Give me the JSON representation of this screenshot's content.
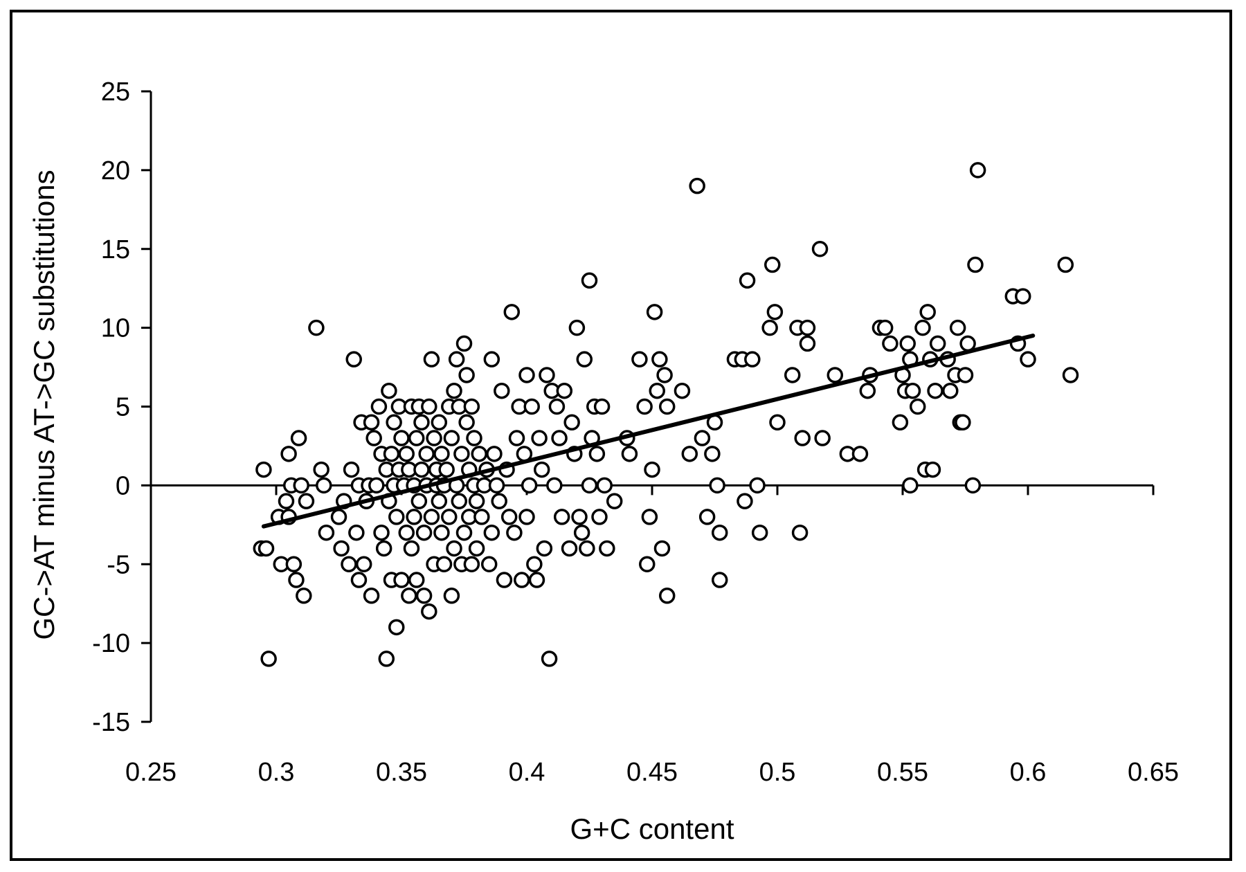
{
  "chart_data": {
    "type": "scatter",
    "title": "",
    "xlabel": "G+C content",
    "ylabel": "GC->AT minus AT->GC substitutions",
    "xlim": [
      0.25,
      0.65
    ],
    "ylim": [
      -15,
      25
    ],
    "x_ticks": [
      0.25,
      0.3,
      0.35,
      0.4,
      0.45,
      0.5,
      0.55,
      0.6,
      0.65
    ],
    "x_tick_labels": [
      "0.25",
      "0.3",
      "0.35",
      "0.4",
      "0.45",
      "0.5",
      "0.55",
      "0.6",
      "0.65"
    ],
    "y_ticks": [
      -15,
      -10,
      -5,
      0,
      5,
      10,
      15,
      20,
      25
    ],
    "y_tick_labels": [
      "-15",
      "-10",
      "-5",
      "0",
      "5",
      "10",
      "15",
      "20",
      "25"
    ],
    "grid": false,
    "legend": "none",
    "marker": "open-circle",
    "trendline": {
      "x": [
        0.295,
        0.602
      ],
      "y": [
        -2.6,
        9.5
      ]
    },
    "points": [
      [
        0.295,
        1
      ],
      [
        0.294,
        -4
      ],
      [
        0.296,
        -4
      ],
      [
        0.297,
        -11
      ],
      [
        0.301,
        -2
      ],
      [
        0.302,
        -5
      ],
      [
        0.304,
        -1
      ],
      [
        0.305,
        2
      ],
      [
        0.305,
        -2
      ],
      [
        0.306,
        0
      ],
      [
        0.307,
        -5
      ],
      [
        0.308,
        -6
      ],
      [
        0.309,
        3
      ],
      [
        0.31,
        0
      ],
      [
        0.311,
        -7
      ],
      [
        0.312,
        -1
      ],
      [
        0.316,
        10
      ],
      [
        0.318,
        1
      ],
      [
        0.319,
        0
      ],
      [
        0.32,
        -3
      ],
      [
        0.325,
        -2
      ],
      [
        0.326,
        -4
      ],
      [
        0.327,
        -1
      ],
      [
        0.329,
        -5
      ],
      [
        0.33,
        1
      ],
      [
        0.331,
        8
      ],
      [
        0.332,
        -3
      ],
      [
        0.333,
        0
      ],
      [
        0.333,
        -6
      ],
      [
        0.334,
        4
      ],
      [
        0.335,
        -5
      ],
      [
        0.336,
        -1
      ],
      [
        0.337,
        0
      ],
      [
        0.338,
        4
      ],
      [
        0.338,
        -7
      ],
      [
        0.339,
        3
      ],
      [
        0.34,
        0
      ],
      [
        0.341,
        5
      ],
      [
        0.342,
        2
      ],
      [
        0.342,
        -3
      ],
      [
        0.343,
        -4
      ],
      [
        0.344,
        1
      ],
      [
        0.344,
        -11
      ],
      [
        0.345,
        6
      ],
      [
        0.345,
        -1
      ],
      [
        0.346,
        2
      ],
      [
        0.346,
        -6
      ],
      [
        0.347,
        0
      ],
      [
        0.347,
        4
      ],
      [
        0.348,
        -2
      ],
      [
        0.348,
        -9
      ],
      [
        0.349,
        5
      ],
      [
        0.349,
        1
      ],
      [
        0.35,
        -6
      ],
      [
        0.35,
        3
      ],
      [
        0.351,
        0
      ],
      [
        0.352,
        -3
      ],
      [
        0.352,
        2
      ],
      [
        0.353,
        -7
      ],
      [
        0.353,
        1
      ],
      [
        0.354,
        -4
      ],
      [
        0.354,
        5
      ],
      [
        0.355,
        0
      ],
      [
        0.355,
        -2
      ],
      [
        0.356,
        3
      ],
      [
        0.356,
        -6
      ],
      [
        0.357,
        5
      ],
      [
        0.357,
        -1
      ],
      [
        0.358,
        1
      ],
      [
        0.358,
        4
      ],
      [
        0.359,
        -3
      ],
      [
        0.359,
        -7
      ],
      [
        0.36,
        0
      ],
      [
        0.36,
        2
      ],
      [
        0.361,
        -8
      ],
      [
        0.361,
        5
      ],
      [
        0.362,
        8
      ],
      [
        0.362,
        -2
      ],
      [
        0.363,
        3
      ],
      [
        0.363,
        -5
      ],
      [
        0.364,
        1
      ],
      [
        0.364,
        0
      ],
      [
        0.365,
        4
      ],
      [
        0.365,
        -1
      ],
      [
        0.366,
        -3
      ],
      [
        0.366,
        2
      ],
      [
        0.367,
        -5
      ],
      [
        0.367,
        0
      ],
      [
        0.368,
        1
      ],
      [
        0.369,
        5
      ],
      [
        0.369,
        -2
      ],
      [
        0.37,
        -7
      ],
      [
        0.37,
        3
      ],
      [
        0.371,
        -4
      ],
      [
        0.371,
        6
      ],
      [
        0.372,
        8
      ],
      [
        0.372,
        0
      ],
      [
        0.373,
        5
      ],
      [
        0.373,
        -1
      ],
      [
        0.374,
        2
      ],
      [
        0.374,
        -5
      ],
      [
        0.375,
        9
      ],
      [
        0.375,
        -3
      ],
      [
        0.376,
        7
      ],
      [
        0.376,
        4
      ],
      [
        0.377,
        1
      ],
      [
        0.377,
        -2
      ],
      [
        0.378,
        5
      ],
      [
        0.378,
        -5
      ],
      [
        0.379,
        0
      ],
      [
        0.379,
        3
      ],
      [
        0.38,
        -1
      ],
      [
        0.38,
        -4
      ],
      [
        0.381,
        2
      ],
      [
        0.382,
        -2
      ],
      [
        0.383,
        0
      ],
      [
        0.384,
        1
      ],
      [
        0.385,
        -5
      ],
      [
        0.386,
        8
      ],
      [
        0.386,
        -3
      ],
      [
        0.387,
        2
      ],
      [
        0.388,
        0
      ],
      [
        0.389,
        -1
      ],
      [
        0.39,
        6
      ],
      [
        0.391,
        -6
      ],
      [
        0.392,
        1
      ],
      [
        0.393,
        -2
      ],
      [
        0.394,
        11
      ],
      [
        0.395,
        -3
      ],
      [
        0.396,
        3
      ],
      [
        0.397,
        5
      ],
      [
        0.398,
        -6
      ],
      [
        0.399,
        2
      ],
      [
        0.4,
        7
      ],
      [
        0.4,
        -2
      ],
      [
        0.401,
        0
      ],
      [
        0.402,
        5
      ],
      [
        0.403,
        -5
      ],
      [
        0.404,
        -6
      ],
      [
        0.405,
        3
      ],
      [
        0.406,
        1
      ],
      [
        0.407,
        -4
      ],
      [
        0.408,
        7
      ],
      [
        0.409,
        -11
      ],
      [
        0.41,
        6
      ],
      [
        0.411,
        0
      ],
      [
        0.412,
        5
      ],
      [
        0.413,
        3
      ],
      [
        0.414,
        -2
      ],
      [
        0.415,
        6
      ],
      [
        0.417,
        -4
      ],
      [
        0.418,
        4
      ],
      [
        0.419,
        2
      ],
      [
        0.42,
        10
      ],
      [
        0.421,
        -2
      ],
      [
        0.422,
        -3
      ],
      [
        0.423,
        8
      ],
      [
        0.424,
        -4
      ],
      [
        0.425,
        13
      ],
      [
        0.425,
        0
      ],
      [
        0.426,
        3
      ],
      [
        0.427,
        5
      ],
      [
        0.428,
        2
      ],
      [
        0.429,
        -2
      ],
      [
        0.43,
        5
      ],
      [
        0.431,
        0
      ],
      [
        0.432,
        -4
      ],
      [
        0.435,
        -1
      ],
      [
        0.44,
        3
      ],
      [
        0.441,
        2
      ],
      [
        0.445,
        8
      ],
      [
        0.447,
        5
      ],
      [
        0.448,
        -5
      ],
      [
        0.449,
        -2
      ],
      [
        0.45,
        1
      ],
      [
        0.451,
        11
      ],
      [
        0.452,
        6
      ],
      [
        0.453,
        8
      ],
      [
        0.454,
        -4
      ],
      [
        0.455,
        7
      ],
      [
        0.456,
        -7
      ],
      [
        0.456,
        5
      ],
      [
        0.462,
        6
      ],
      [
        0.465,
        2
      ],
      [
        0.468,
        19
      ],
      [
        0.47,
        3
      ],
      [
        0.472,
        -2
      ],
      [
        0.474,
        2
      ],
      [
        0.475,
        4
      ],
      [
        0.476,
        0
      ],
      [
        0.477,
        -3
      ],
      [
        0.477,
        -6
      ],
      [
        0.483,
        8
      ],
      [
        0.486,
        8
      ],
      [
        0.487,
        -1
      ],
      [
        0.488,
        13
      ],
      [
        0.49,
        8
      ],
      [
        0.492,
        0
      ],
      [
        0.493,
        -3
      ],
      [
        0.497,
        10
      ],
      [
        0.498,
        14
      ],
      [
        0.499,
        11
      ],
      [
        0.5,
        4
      ],
      [
        0.506,
        7
      ],
      [
        0.508,
        10
      ],
      [
        0.509,
        -3
      ],
      [
        0.51,
        3
      ],
      [
        0.512,
        10
      ],
      [
        0.512,
        9
      ],
      [
        0.517,
        15
      ],
      [
        0.518,
        3
      ],
      [
        0.523,
        7
      ],
      [
        0.528,
        2
      ],
      [
        0.533,
        2
      ],
      [
        0.536,
        6
      ],
      [
        0.537,
        7
      ],
      [
        0.541,
        10
      ],
      [
        0.543,
        10
      ],
      [
        0.545,
        9
      ],
      [
        0.549,
        4
      ],
      [
        0.55,
        7
      ],
      [
        0.551,
        6
      ],
      [
        0.552,
        9
      ],
      [
        0.553,
        8
      ],
      [
        0.553,
        0
      ],
      [
        0.554,
        6
      ],
      [
        0.556,
        5
      ],
      [
        0.558,
        10
      ],
      [
        0.559,
        1
      ],
      [
        0.56,
        11
      ],
      [
        0.561,
        8
      ],
      [
        0.562,
        1
      ],
      [
        0.563,
        6
      ],
      [
        0.564,
        9
      ],
      [
        0.568,
        8
      ],
      [
        0.569,
        6
      ],
      [
        0.571,
        7
      ],
      [
        0.572,
        10
      ],
      [
        0.573,
        4
      ],
      [
        0.574,
        4
      ],
      [
        0.575,
        7
      ],
      [
        0.576,
        9
      ],
      [
        0.578,
        0
      ],
      [
        0.579,
        14
      ],
      [
        0.58,
        20
      ],
      [
        0.594,
        12
      ],
      [
        0.598,
        12
      ],
      [
        0.596,
        9
      ],
      [
        0.6,
        8
      ],
      [
        0.615,
        14
      ],
      [
        0.617,
        7
      ]
    ]
  }
}
